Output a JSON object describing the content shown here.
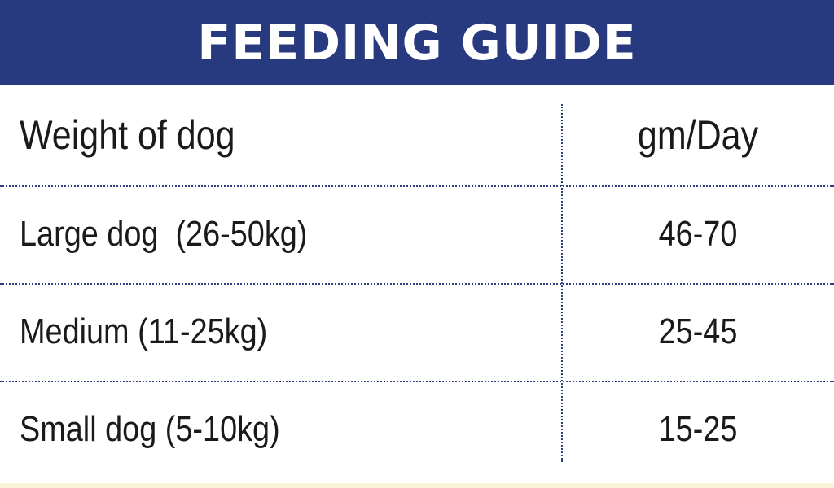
{
  "header": {
    "title": "FEEDING GUIDE"
  },
  "table": {
    "columns": [
      "Weight of dog",
      "gm/Day"
    ],
    "rows": [
      {
        "weight": "Large dog  (26-50kg)",
        "amount": "46-70"
      },
      {
        "weight": "Medium (11-25kg)",
        "amount": "25-45"
      },
      {
        "weight": "Small dog (5-10kg)",
        "amount": "15-25"
      }
    ]
  },
  "colors": {
    "header_background": "#27397f",
    "header_text": "#ffffff",
    "divider": "#2d3f86",
    "body_text": "#1a1a1a"
  }
}
